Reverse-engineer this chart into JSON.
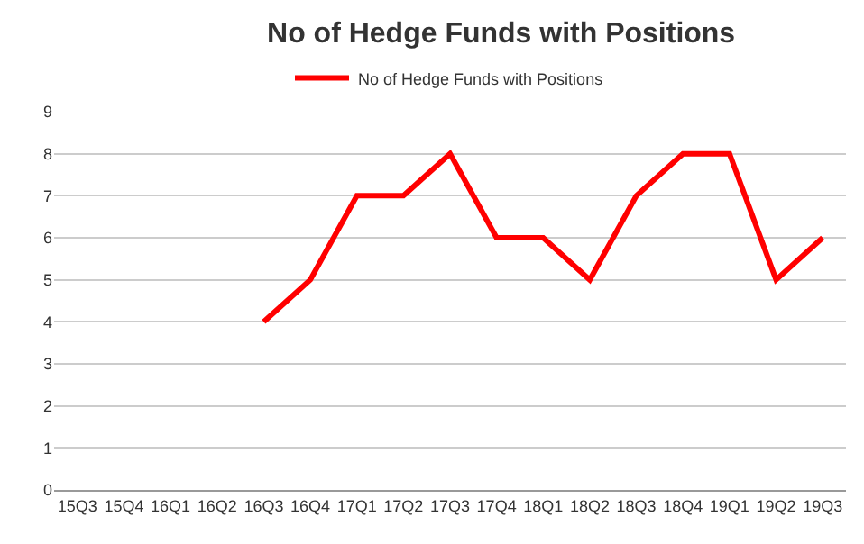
{
  "chart_data": {
    "type": "line",
    "title": "No of Hedge Funds with Positions",
    "categories": [
      "15Q3",
      "15Q4",
      "16Q1",
      "16Q2",
      "16Q3",
      "16Q4",
      "17Q1",
      "17Q2",
      "17Q3",
      "17Q4",
      "18Q1",
      "18Q2",
      "18Q3",
      "18Q4",
      "19Q1",
      "19Q2",
      "19Q3"
    ],
    "series": [
      {
        "name": "No of Hedge Funds with Positions",
        "color": "#ff0000",
        "values": [
          null,
          null,
          null,
          null,
          4,
          5,
          7,
          7,
          8,
          6,
          6,
          5,
          7,
          8,
          8,
          5,
          6
        ]
      }
    ],
    "ylim": [
      0,
      9
    ],
    "yticks": [
      0,
      1,
      2,
      3,
      4,
      5,
      6,
      7,
      8,
      9
    ],
    "grid": "y",
    "legend": "top",
    "marker": "none",
    "line_style": "solid"
  }
}
